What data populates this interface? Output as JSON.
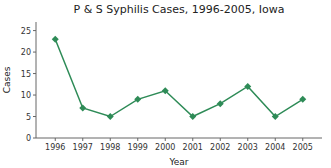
{
  "chart_data": {
    "type": "line",
    "title": "P & S Syphilis Cases, 1996-2005, Iowa",
    "xlabel": "Year",
    "ylabel": "Cases",
    "x": [
      1996,
      1997,
      1998,
      1999,
      2000,
      2001,
      2002,
      2003,
      2004,
      2005
    ],
    "values": [
      23,
      7,
      5,
      9,
      11,
      5,
      8,
      12,
      5,
      9
    ],
    "color": "#2e8b57",
    "marker": "diamond",
    "xlim": [
      1995.3,
      2005.7
    ],
    "xticks": [
      1996,
      1997,
      1998,
      1999,
      2000,
      2001,
      2002,
      2003,
      2004,
      2005
    ],
    "ylim": [
      0,
      27
    ],
    "yticks": [
      0,
      5,
      10,
      15,
      20,
      25
    ],
    "grid": false
  }
}
